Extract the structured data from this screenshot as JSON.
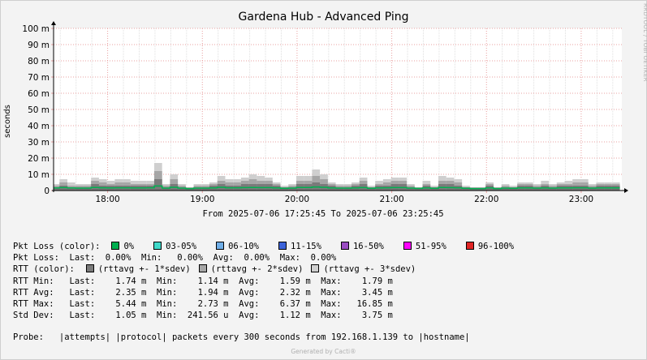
{
  "page": {
    "title": "Gardena Hub - Advanced Ping",
    "side_watermark": "RRDTOOL / TOBI OETIKER",
    "footer": "Generated by Cacti®"
  },
  "chart_data": {
    "type": "area",
    "title": "Gardena Hub - Advanced Ping",
    "ylabel": "seconds",
    "ylim": [
      0,
      0.1
    ],
    "yticks": [
      0,
      0.01,
      0.02,
      0.03,
      0.04,
      0.05,
      0.06,
      0.07,
      0.08,
      0.09,
      0.1
    ],
    "ytick_labels": [
      "0",
      "10 m",
      "20 m",
      "30 m",
      "40 m",
      "50 m",
      "60 m",
      "70 m",
      "80 m",
      "90 m",
      "100 m"
    ],
    "xlim": [
      "17:25:45",
      "23:25:45"
    ],
    "xticks": [
      "18:00",
      "19:00",
      "20:00",
      "21:00",
      "22:00",
      "23:00"
    ],
    "date_range_label": "From 2025-07-06 17:25:45 To 2025-07-06 23:25:45",
    "grid": true,
    "x_time_labels": [
      "17:27",
      "17:32",
      "17:37",
      "17:42",
      "17:47",
      "17:52",
      "17:57",
      "18:02",
      "18:07",
      "18:12",
      "18:17",
      "18:22",
      "18:27",
      "18:32",
      "18:37",
      "18:42",
      "18:47",
      "18:52",
      "18:57",
      "19:02",
      "19:07",
      "19:12",
      "19:17",
      "19:22",
      "19:27",
      "19:32",
      "19:37",
      "19:42",
      "19:47",
      "19:52",
      "19:57",
      "20:02",
      "20:07",
      "20:12",
      "20:17",
      "20:22",
      "20:27",
      "20:32",
      "20:37",
      "20:42",
      "20:47",
      "20:52",
      "20:57",
      "21:02",
      "21:07",
      "21:12",
      "21:17",
      "21:22",
      "21:27",
      "21:32",
      "21:37",
      "21:42",
      "21:47",
      "21:52",
      "21:57",
      "22:02",
      "22:07",
      "22:12",
      "22:17",
      "22:22",
      "22:27",
      "22:32",
      "22:37",
      "22:42",
      "22:47",
      "22:52",
      "22:57",
      "23:02",
      "23:07",
      "23:12",
      "23:17",
      "23:22"
    ],
    "series": [
      {
        "name": "rttavg +- 3*sdev",
        "color": "#cfcfcf",
        "values": [
          0.004,
          0.007,
          0.005,
          0.004,
          0.004,
          0.008,
          0.007,
          0.006,
          0.007,
          0.007,
          0.006,
          0.006,
          0.006,
          0.017,
          0.004,
          0.01,
          0.004,
          0.002,
          0.004,
          0.004,
          0.005,
          0.009,
          0.007,
          0.007,
          0.008,
          0.01,
          0.009,
          0.008,
          0.005,
          0.003,
          0.004,
          0.009,
          0.009,
          0.013,
          0.01,
          0.005,
          0.004,
          0.004,
          0.005,
          0.008,
          0.003,
          0.006,
          0.007,
          0.008,
          0.008,
          0.004,
          0.002,
          0.006,
          0.003,
          0.009,
          0.008,
          0.007,
          0.003,
          0.002,
          0.002,
          0.005,
          0.002,
          0.004,
          0.003,
          0.005,
          0.005,
          0.004,
          0.006,
          0.004,
          0.005,
          0.006,
          0.007,
          0.007,
          0.004,
          0.005,
          0.005,
          0.005
        ]
      },
      {
        "name": "rttavg +- 2*sdev",
        "color": "#a6a6a6",
        "values": [
          0.003,
          0.005,
          0.003,
          0.003,
          0.003,
          0.006,
          0.005,
          0.004,
          0.005,
          0.005,
          0.004,
          0.004,
          0.004,
          0.012,
          0.003,
          0.007,
          0.003,
          0.002,
          0.003,
          0.003,
          0.004,
          0.006,
          0.005,
          0.005,
          0.006,
          0.007,
          0.006,
          0.006,
          0.004,
          0.002,
          0.003,
          0.006,
          0.006,
          0.009,
          0.007,
          0.004,
          0.003,
          0.003,
          0.004,
          0.006,
          0.002,
          0.004,
          0.005,
          0.006,
          0.006,
          0.003,
          0.002,
          0.004,
          0.002,
          0.006,
          0.006,
          0.005,
          0.002,
          0.002,
          0.002,
          0.004,
          0.002,
          0.003,
          0.002,
          0.004,
          0.004,
          0.003,
          0.004,
          0.003,
          0.004,
          0.004,
          0.005,
          0.005,
          0.003,
          0.004,
          0.004,
          0.004
        ]
      },
      {
        "name": "rttavg +- 1*sdev",
        "color": "#7a7a7a",
        "values": [
          0.002,
          0.003,
          0.002,
          0.002,
          0.002,
          0.004,
          0.003,
          0.003,
          0.003,
          0.003,
          0.003,
          0.003,
          0.003,
          0.007,
          0.002,
          0.004,
          0.002,
          0.001,
          0.002,
          0.002,
          0.003,
          0.004,
          0.003,
          0.003,
          0.004,
          0.004,
          0.004,
          0.004,
          0.003,
          0.002,
          0.002,
          0.004,
          0.004,
          0.005,
          0.004,
          0.003,
          0.002,
          0.002,
          0.003,
          0.004,
          0.002,
          0.003,
          0.003,
          0.004,
          0.004,
          0.002,
          0.001,
          0.003,
          0.002,
          0.004,
          0.004,
          0.003,
          0.002,
          0.001,
          0.001,
          0.003,
          0.001,
          0.002,
          0.002,
          0.003,
          0.003,
          0.002,
          0.003,
          0.002,
          0.003,
          0.003,
          0.003,
          0.003,
          0.002,
          0.003,
          0.003,
          0.003
        ]
      },
      {
        "name": "0%",
        "color": "#00b050",
        "role": "rtt line",
        "values": [
          0.0016,
          0.0018,
          0.0016,
          0.0015,
          0.0015,
          0.0019,
          0.0017,
          0.0016,
          0.0017,
          0.0017,
          0.0016,
          0.0016,
          0.0017,
          0.0028,
          0.0015,
          0.002,
          0.0015,
          0.0012,
          0.0015,
          0.0015,
          0.0016,
          0.002,
          0.0017,
          0.0017,
          0.0018,
          0.0019,
          0.0018,
          0.0018,
          0.0016,
          0.0014,
          0.0015,
          0.0019,
          0.0019,
          0.0022,
          0.002,
          0.0016,
          0.0015,
          0.0015,
          0.0016,
          0.0018,
          0.0014,
          0.0016,
          0.0017,
          0.0018,
          0.0018,
          0.0015,
          0.0013,
          0.0016,
          0.0014,
          0.0019,
          0.0018,
          0.0017,
          0.0014,
          0.0012,
          0.0012,
          0.0016,
          0.0012,
          0.0015,
          0.0014,
          0.0016,
          0.0016,
          0.0015,
          0.0016,
          0.0015,
          0.0016,
          0.0016,
          0.0017,
          0.0017,
          0.0015,
          0.0016,
          0.0016,
          0.0016
        ]
      }
    ]
  },
  "legend": {
    "pkt_loss_color_label": "Pkt Loss (color):",
    "pkt_loss_items": [
      {
        "label": "0%",
        "color": "#00b050"
      },
      {
        "label": "03-05%",
        "color": "#3fd9c9"
      },
      {
        "label": "06-10%",
        "color": "#6faee8"
      },
      {
        "label": "11-15%",
        "color": "#3c63d9"
      },
      {
        "label": "16-50%",
        "color": "#9a4cc2"
      },
      {
        "label": "51-95%",
        "color": "#ff00ff"
      },
      {
        "label": "96-100%",
        "color": "#e02424"
      }
    ],
    "pkt_loss_stats": "Pkt Loss:  Last:  0.00%  Min:   0.00%  Avg:  0.00%  Max:  0.00%",
    "rtt_color_label": "RTT (color):",
    "rtt_items": [
      {
        "label": "(rttavg +- 1*sdev)",
        "color": "#7a7a7a"
      },
      {
        "label": "(rttavg +- 2*sdev)",
        "color": "#a6a6a6"
      },
      {
        "label": "(rttavg +- 3*sdev)",
        "color": "#cfcfcf"
      }
    ],
    "rtt_min": "RTT Min:   Last:    1.74 m  Min:    1.14 m  Avg:    1.59 m  Max:    1.79 m",
    "rtt_avg": "RTT Avg:   Last:    2.35 m  Min:    1.94 m  Avg:    2.32 m  Max:    3.45 m",
    "rtt_max": "RTT Max:   Last:    5.44 m  Min:    2.73 m  Avg:    6.37 m  Max:   16.85 m",
    "std_dev": "Std Dev:   Last:    1.05 m  Min:  241.56 u  Avg:    1.12 m  Max:    3.75 m",
    "probe": "Probe:   |attempts| |protocol| packets every 300 seconds from 192.168.1.139 to |hostname|"
  }
}
